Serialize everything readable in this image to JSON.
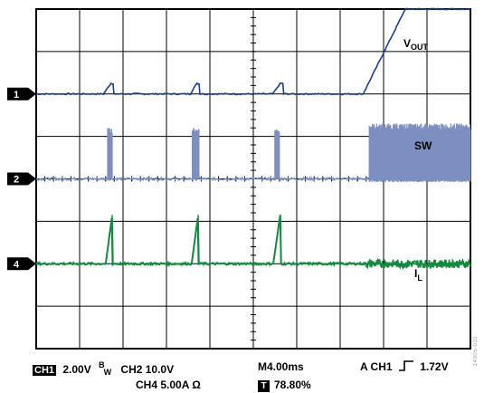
{
  "chart_data": {
    "type": "line",
    "title": "",
    "grid": {
      "x_divisions": 10,
      "y_divisions": 8,
      "minor_ticks_per_division": 5
    },
    "x_unit": "div",
    "xlim": [
      0,
      10
    ],
    "ylim": [
      0,
      8
    ],
    "channels": [
      {
        "marker": "1",
        "name": "VOUT",
        "color": "#1c3f8c",
        "baseline_div": 6.0,
        "points": [
          [
            0,
            0
          ],
          [
            1.55,
            0
          ],
          [
            1.72,
            0.25
          ],
          [
            1.77,
            0.25
          ],
          [
            1.79,
            0
          ],
          [
            3.55,
            0
          ],
          [
            3.7,
            0.25
          ],
          [
            3.75,
            0.25
          ],
          [
            3.77,
            0
          ],
          [
            5.45,
            0
          ],
          [
            5.62,
            0.25
          ],
          [
            5.68,
            0.25
          ],
          [
            5.7,
            0
          ],
          [
            7.53,
            0
          ],
          [
            8.5,
            2.0
          ],
          [
            10,
            2.0
          ]
        ]
      },
      {
        "marker": "2",
        "name": "SW",
        "color": "#7d8fc0",
        "baseline_div": 4.0,
        "bursts": [
          [
            1.65,
            1.75
          ],
          [
            3.6,
            3.75
          ],
          [
            5.5,
            5.6
          ]
        ],
        "burst_height_div": 1.2,
        "continuous_switching": {
          "start": 7.67,
          "end": 10,
          "level_div": 1.2
        }
      },
      {
        "marker": "4",
        "name": "IL",
        "color": "#138a40",
        "baseline_div": 2.0,
        "ramps": [
          [
            1.6,
            1.75
          ],
          [
            3.58,
            3.73
          ],
          [
            5.46,
            5.62
          ]
        ],
        "peak_div": 1.15,
        "ripple": {
          "start": 7.6,
          "end": 10,
          "amplitude_div": 0.1
        }
      }
    ]
  },
  "labels": {
    "vout_main": "V",
    "vout_sub": "OUT",
    "sw": "SW",
    "il_main": "I",
    "il_sub": "L"
  },
  "status": {
    "ch1_badge": "CH1",
    "ch1_scale": "2.00V",
    "bw_main": "B",
    "bw_sub": "W",
    "ch2": "CH2  10.0V",
    "ch4": "CH4  5.00A Ω",
    "timebase": "M4.00ms",
    "t_badge": "T",
    "t_pos": "78.80%",
    "trigger_src": "A  CH1",
    "trigger_level": "1.72V"
  },
  "id_code": "14305-010"
}
